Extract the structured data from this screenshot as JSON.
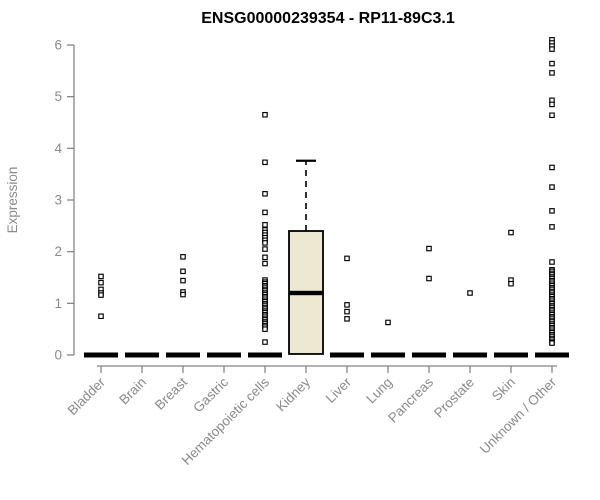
{
  "chart_data": {
    "type": "boxplot",
    "title": "ENSG00000239354 - RP11-89C3.1",
    "xlabel": "",
    "ylabel": "Expression",
    "ylim": [
      0,
      6.15
    ],
    "yticks": [
      0,
      1,
      2,
      3,
      4,
      5,
      6
    ],
    "grid": false,
    "legend": "none",
    "categories": [
      "Bladder",
      "Brain",
      "Breast",
      "Gastric",
      "Hematopoietic cells",
      "Kidney",
      "Liver",
      "Lung",
      "Pancreas",
      "Prostate",
      "Skin",
      "Unknown / Other"
    ],
    "groups": [
      {
        "name": "Bladder",
        "median": 0,
        "box": null,
        "outliers": [
          1.52,
          1.4,
          1.27,
          1.2,
          1.16,
          0.75
        ]
      },
      {
        "name": "Brain",
        "median": 0,
        "box": null,
        "outliers": []
      },
      {
        "name": "Breast",
        "median": 0,
        "box": null,
        "outliers": [
          1.9,
          1.62,
          1.44,
          1.22,
          1.17
        ]
      },
      {
        "name": "Gastric",
        "median": 0,
        "box": null,
        "outliers": []
      },
      {
        "name": "Hematopoietic cells",
        "median": 0,
        "box": null,
        "outliers": [
          4.65,
          3.73,
          3.12,
          2.76,
          2.52,
          2.42,
          2.37,
          2.32,
          2.27,
          2.22,
          2.17,
          2.05,
          1.89,
          1.77,
          1.45,
          1.41,
          1.38,
          1.34,
          1.31,
          1.27,
          1.24,
          1.2,
          1.17,
          1.13,
          1.1,
          1.06,
          1.03,
          0.99,
          0.96,
          0.92,
          0.89,
          0.85,
          0.82,
          0.78,
          0.75,
          0.71,
          0.68,
          0.64,
          0.61,
          0.57,
          0.54,
          0.5,
          0.25
        ]
      },
      {
        "name": "Kidney",
        "median": 1.2,
        "box": {
          "whisker_high": 3.76,
          "q3": 2.4,
          "median": 1.2,
          "q1": 0.02
        },
        "outliers": []
      },
      {
        "name": "Liver",
        "median": 0,
        "box": null,
        "outliers": [
          1.87,
          0.97,
          0.84,
          0.7
        ]
      },
      {
        "name": "Lung",
        "median": 0,
        "box": null,
        "outliers": [
          0.63
        ]
      },
      {
        "name": "Pancreas",
        "median": 0,
        "box": null,
        "outliers": [
          2.06,
          1.48
        ]
      },
      {
        "name": "Prostate",
        "median": 0,
        "box": null,
        "outliers": [
          1.2
        ]
      },
      {
        "name": "Skin",
        "median": 0,
        "box": null,
        "outliers": [
          2.37,
          1.45,
          1.38
        ]
      },
      {
        "name": "Unknown / Other",
        "median": 0,
        "box": null,
        "outliers": [
          6.1,
          6.04,
          5.98,
          5.92,
          5.64,
          5.46,
          4.93,
          4.85,
          4.64,
          3.63,
          3.25,
          2.79,
          2.48,
          1.8,
          1.65,
          1.62,
          1.58,
          1.55,
          1.51,
          1.48,
          1.44,
          1.41,
          1.37,
          1.34,
          1.3,
          1.27,
          1.23,
          1.2,
          1.16,
          1.13,
          1.09,
          1.06,
          1.02,
          0.99,
          0.95,
          0.92,
          0.88,
          0.85,
          0.81,
          0.78,
          0.74,
          0.71,
          0.67,
          0.64,
          0.6,
          0.57,
          0.53,
          0.5,
          0.46,
          0.43,
          0.39,
          0.36,
          0.32,
          0.29,
          0.25,
          0.23
        ]
      }
    ],
    "colors": {
      "box_fill": "#ede8d2",
      "box_stroke": "#000000",
      "median": "#000000",
      "outlier_stroke": "#000000",
      "outlier_fill": "#ffffff",
      "axis": "#858585",
      "axis_text": "#8a8a8a",
      "title_text": "#000000",
      "background": "#ffffff"
    }
  }
}
